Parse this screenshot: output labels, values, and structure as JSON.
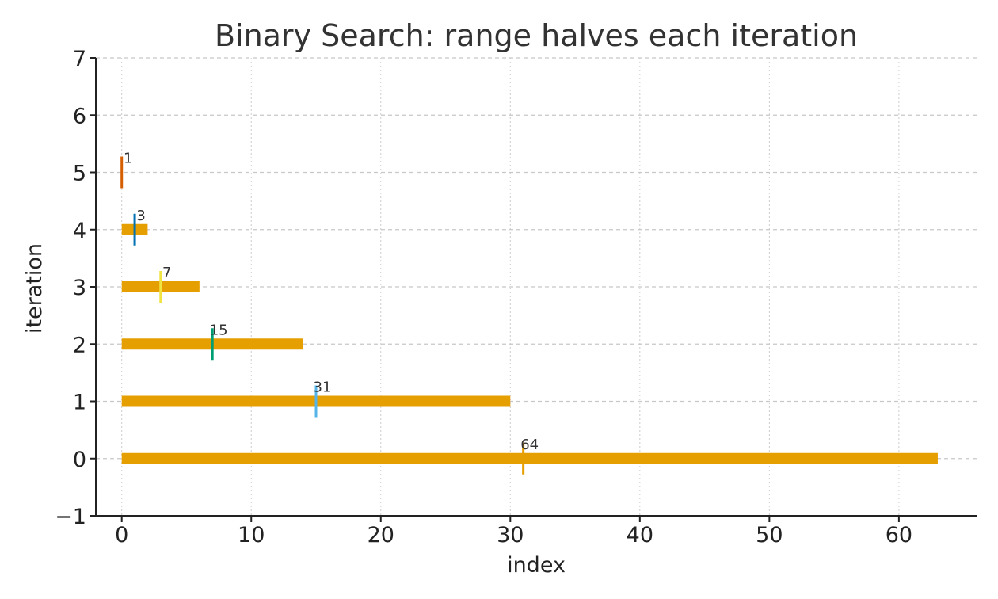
{
  "chart_data": {
    "type": "bar",
    "orientation": "horizontal",
    "title": "Binary Search: range halves each iteration",
    "xlabel": "index",
    "ylabel": "iteration",
    "xlim": [
      -2,
      66
    ],
    "ylim": [
      -1,
      7
    ],
    "x_ticks": [
      0,
      10,
      20,
      30,
      40,
      50,
      60
    ],
    "y_ticks": [
      -1,
      0,
      1,
      2,
      3,
      4,
      5,
      6,
      7
    ],
    "y_tick_labels": [
      "−1",
      "0",
      "1",
      "2",
      "3",
      "4",
      "5",
      "6",
      "7"
    ],
    "grid": true,
    "bar_color": "#E69F00",
    "ranges": [
      {
        "iteration": 0,
        "low": 0,
        "high": 63,
        "size_label": "64",
        "mid": 31,
        "mid_color": "#E69F00"
      },
      {
        "iteration": 1,
        "low": 0,
        "high": 30,
        "size_label": "31",
        "mid": 15,
        "mid_color": "#56B4E9"
      },
      {
        "iteration": 2,
        "low": 0,
        "high": 14,
        "size_label": "15",
        "mid": 7,
        "mid_color": "#009E73"
      },
      {
        "iteration": 3,
        "low": 0,
        "high": 6,
        "size_label": "7",
        "mid": 3,
        "mid_color": "#F0E442"
      },
      {
        "iteration": 4,
        "low": 0,
        "high": 2,
        "size_label": "3",
        "mid": 1,
        "mid_color": "#0072B2"
      },
      {
        "iteration": 5,
        "low": 0,
        "high": 0,
        "size_label": "1",
        "mid": 0,
        "mid_color": "#D55E00"
      }
    ]
  }
}
